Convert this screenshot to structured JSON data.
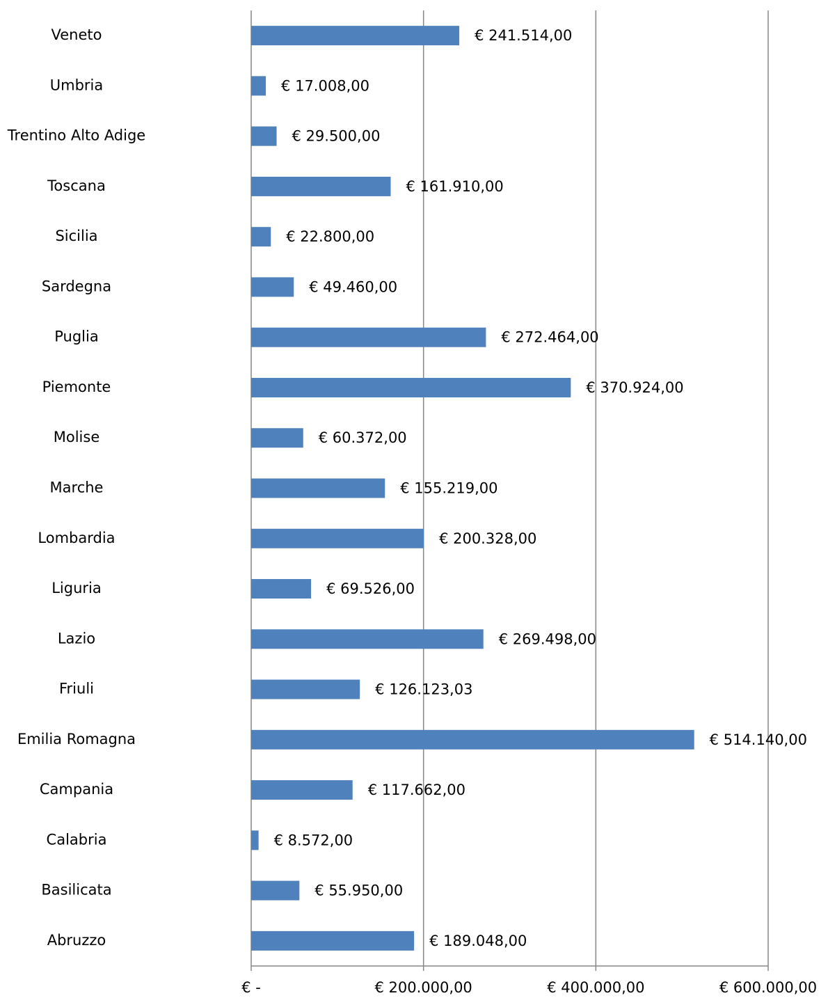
{
  "chart_data": {
    "type": "barh",
    "categories": [
      "Veneto",
      "Umbria",
      "Trentino Alto Adige",
      "Toscana",
      "Sicilia",
      "Sardegna",
      "Puglia",
      "Piemonte",
      "Molise",
      "Marche",
      "Lombardia",
      "Liguria",
      "Lazio",
      "Friuli",
      "Emilia Romagna",
      "Campania",
      "Calabria",
      "Basilicata",
      "Abruzzo"
    ],
    "values": [
      241514,
      17008,
      29500,
      161910,
      22800,
      49460,
      272464,
      370924,
      60372,
      155219,
      200328,
      69526,
      269498,
      126123.03,
      514140,
      117662,
      8572,
      55950,
      189048
    ],
    "value_labels": [
      "€ 241.514,00",
      "€ 17.008,00",
      "€ 29.500,00",
      "€ 161.910,00",
      "€ 22.800,00",
      "€ 49.460,00",
      "€ 272.464,00",
      "€ 370.924,00",
      "€ 60.372,00",
      "€ 155.219,00",
      "€ 200.328,00",
      "€ 69.526,00",
      "€ 269.498,00",
      "€ 126.123,03",
      "€ 514.140,00",
      "€ 117.662,00",
      "€ 8.572,00",
      "€ 55.950,00",
      "€ 189.048,00"
    ],
    "color": "#4f81bd",
    "xlim": [
      0,
      600000
    ],
    "xticks": [
      {
        "value": 0,
        "label": "€ -"
      },
      {
        "value": 200000,
        "label": "€ 200.000,00"
      },
      {
        "value": 400000,
        "label": "€ 400.000,00"
      },
      {
        "value": 600000,
        "label": "€ 600.000,00"
      }
    ],
    "grid": true
  }
}
